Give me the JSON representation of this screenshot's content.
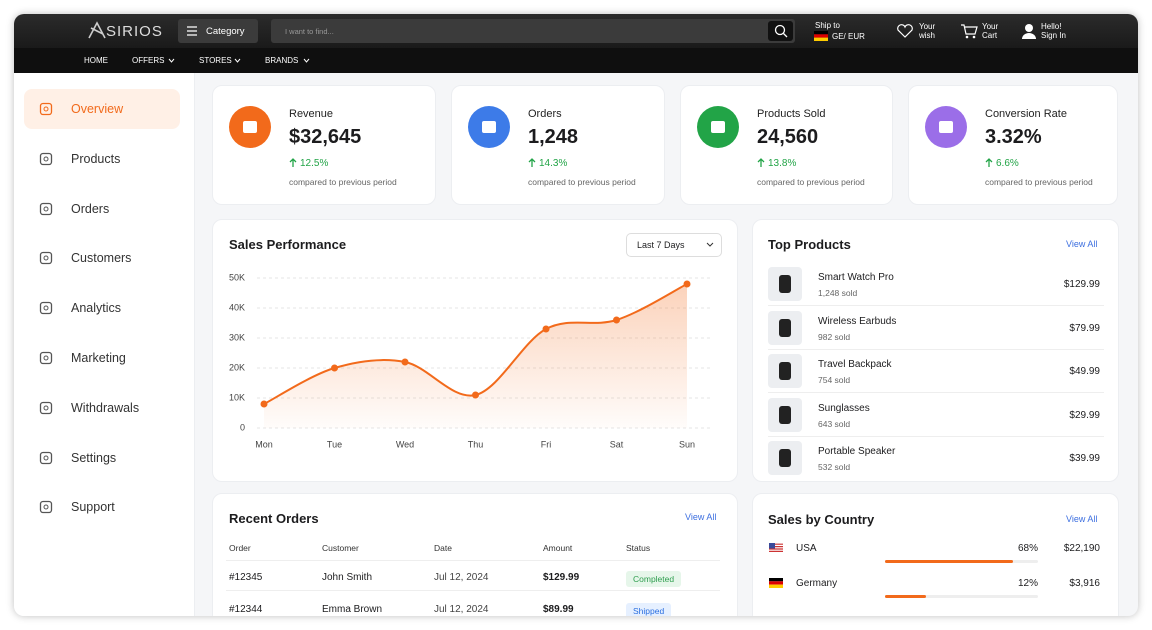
{
  "header": {
    "logo": "SIRIOS",
    "category": "Category",
    "search_placeholder": "I want to find...",
    "ship_to": "Ship to",
    "currency": "GE/ EUR",
    "wish_1": "Your",
    "wish_2": "wish",
    "cart_1": "Your",
    "cart_2": "Cart",
    "account_1": "Hello!",
    "account_2": "Sign In"
  },
  "nav": [
    "HOME",
    "OFFERS",
    "STORES",
    "BRANDS"
  ],
  "sidebar": [
    "Overview",
    "Products",
    "Orders",
    "Customers",
    "Analytics",
    "Marketing",
    "Withdrawals",
    "Settings",
    "Support"
  ],
  "stats": [
    {
      "label": "Revenue",
      "value": "$32,645",
      "change": "12.5%",
      "note": "compared to previous period",
      "color": "#f26a1b"
    },
    {
      "label": "Orders",
      "value": "1,248",
      "change": "14.3%",
      "note": "compared to previous period",
      "color": "#3d7be8"
    },
    {
      "label": "Products Sold",
      "value": "24,560",
      "change": "13.8%",
      "note": "compared to previous period",
      "color": "#22a447"
    },
    {
      "label": "Conversion Rate",
      "value": "3.32%",
      "change": "6.6%",
      "note": "compared to previous period",
      "color": "#9b6ee8"
    }
  ],
  "chart_data": {
    "type": "line",
    "title": "Sales Performance",
    "range": "Last 7 Days",
    "categories": [
      "Mon",
      "Tue",
      "Wed",
      "Thu",
      "Fri",
      "Sat",
      "Sun"
    ],
    "values": [
      8000,
      20000,
      22000,
      11000,
      33000,
      36000,
      48000
    ],
    "color": "#f26a1b",
    "ylim": [
      0,
      50000
    ],
    "yticks": [
      0,
      {
        "value": 10000,
        "label": "10K"
      },
      {
        "value": 20000,
        "label": "20K"
      },
      {
        "value": 30000,
        "label": "30K"
      },
      {
        "value": 40000,
        "label": "40K"
      },
      {
        "value": 50000,
        "label": "50K"
      }
    ],
    "grid": true
  },
  "top_products": {
    "title": "Top Products",
    "view_all": "View All",
    "items": [
      {
        "name": "Smart Watch Pro",
        "sold": "1,248 sold",
        "price": "$129.99"
      },
      {
        "name": "Wireless Earbuds",
        "sold": "982 sold",
        "price": "$79.99"
      },
      {
        "name": "Travel Backpack",
        "sold": "754 sold",
        "price": "$49.99"
      },
      {
        "name": "Sunglasses",
        "sold": "643 sold",
        "price": "$29.99"
      },
      {
        "name": "Portable Speaker",
        "sold": "532 sold",
        "price": "$39.99"
      }
    ]
  },
  "recent_orders": {
    "title": "Recent Orders",
    "view_all": "View All",
    "columns": [
      "Order",
      "Customer",
      "Date",
      "Amount",
      "Status"
    ],
    "rows": [
      [
        "#12345",
        "John Smith",
        "Jul 12, 2024",
        "$129.99",
        "Completed"
      ],
      [
        "#12344",
        "Emma Brown",
        "Jul 12, 2024",
        "$89.99",
        "Shipped"
      ]
    ]
  },
  "sales_by_country": {
    "title": "Sales by Country",
    "view_all": "View All",
    "rows": [
      {
        "country": "USA",
        "share": "68%",
        "amount": "$22,190"
      },
      {
        "country": "Germany",
        "share": "12%",
        "amount": "$3,916"
      }
    ]
  }
}
